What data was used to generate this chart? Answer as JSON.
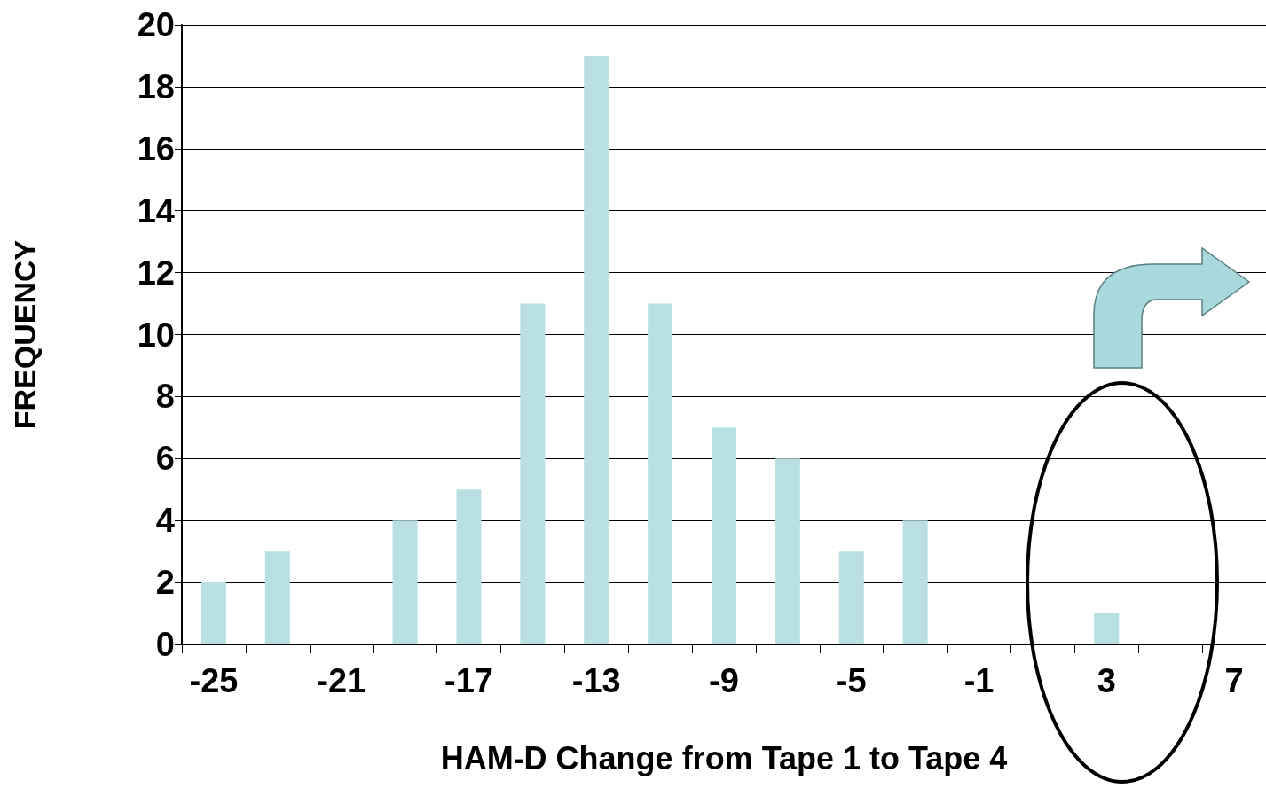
{
  "chart_data": {
    "type": "bar",
    "xlabel": "HAM-D Change from Tape 1 to Tape 4",
    "ylabel": "FREQUENCY",
    "categories": [
      "-25",
      null,
      "-21",
      null,
      "-17",
      null,
      "-13",
      null,
      "-9",
      null,
      "-5",
      null,
      "-1",
      null,
      "3",
      null,
      "7"
    ],
    "values": [
      2,
      3,
      0,
      4,
      5,
      11,
      19,
      11,
      7,
      6,
      3,
      4,
      0,
      0,
      1,
      0,
      0
    ],
    "color": "#b8e0e3",
    "ylim": [
      0,
      20
    ],
    "yticks": [
      0,
      2,
      4,
      6,
      8,
      10,
      12,
      14,
      16,
      18,
      20
    ],
    "grid": "y"
  }
}
